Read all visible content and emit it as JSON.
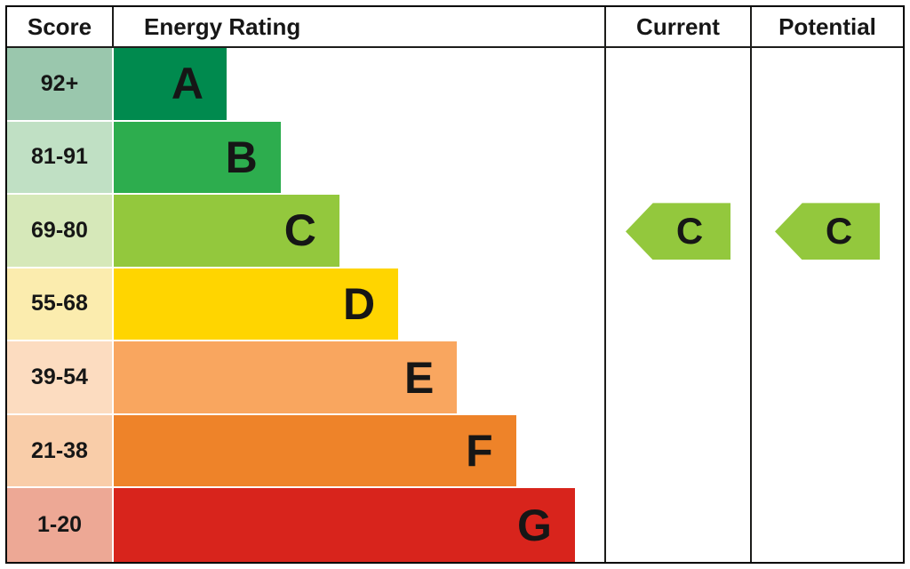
{
  "header": {
    "score": "Score",
    "energy_rating": "Energy Rating",
    "current": "Current",
    "potential": "Potential"
  },
  "chart_data": {
    "type": "bar",
    "title": "Energy Rating",
    "description": "EPC energy efficiency rating bands with current and potential ratings",
    "columns": [
      "Score",
      "Energy Rating",
      "Current",
      "Potential"
    ],
    "bands": [
      {
        "letter": "A",
        "score": "92+",
        "color": "#008a4e",
        "tint": "#9ac7ad",
        "width_pct": 23
      },
      {
        "letter": "B",
        "score": "81-91",
        "color": "#2dad4e",
        "tint": "#c0e0c4",
        "width_pct": 34
      },
      {
        "letter": "C",
        "score": "69-80",
        "color": "#93c83d",
        "tint": "#d6e8b9",
        "width_pct": 46
      },
      {
        "letter": "D",
        "score": "55-68",
        "color": "#ffd500",
        "tint": "#fbecae",
        "width_pct": 58
      },
      {
        "letter": "E",
        "score": "39-54",
        "color": "#f9a65f",
        "tint": "#fcdcc0",
        "width_pct": 70
      },
      {
        "letter": "F",
        "score": "21-38",
        "color": "#ee8329",
        "tint": "#f9cda9",
        "width_pct": 82
      },
      {
        "letter": "G",
        "score": "1-20",
        "color": "#d8241c",
        "tint": "#eda895",
        "width_pct": 94
      }
    ],
    "current": {
      "letter": "C",
      "arrow_color": "#93c83d"
    },
    "potential": {
      "letter": "C",
      "arrow_color": "#93c83d"
    },
    "legend": "none",
    "grid": "off"
  }
}
